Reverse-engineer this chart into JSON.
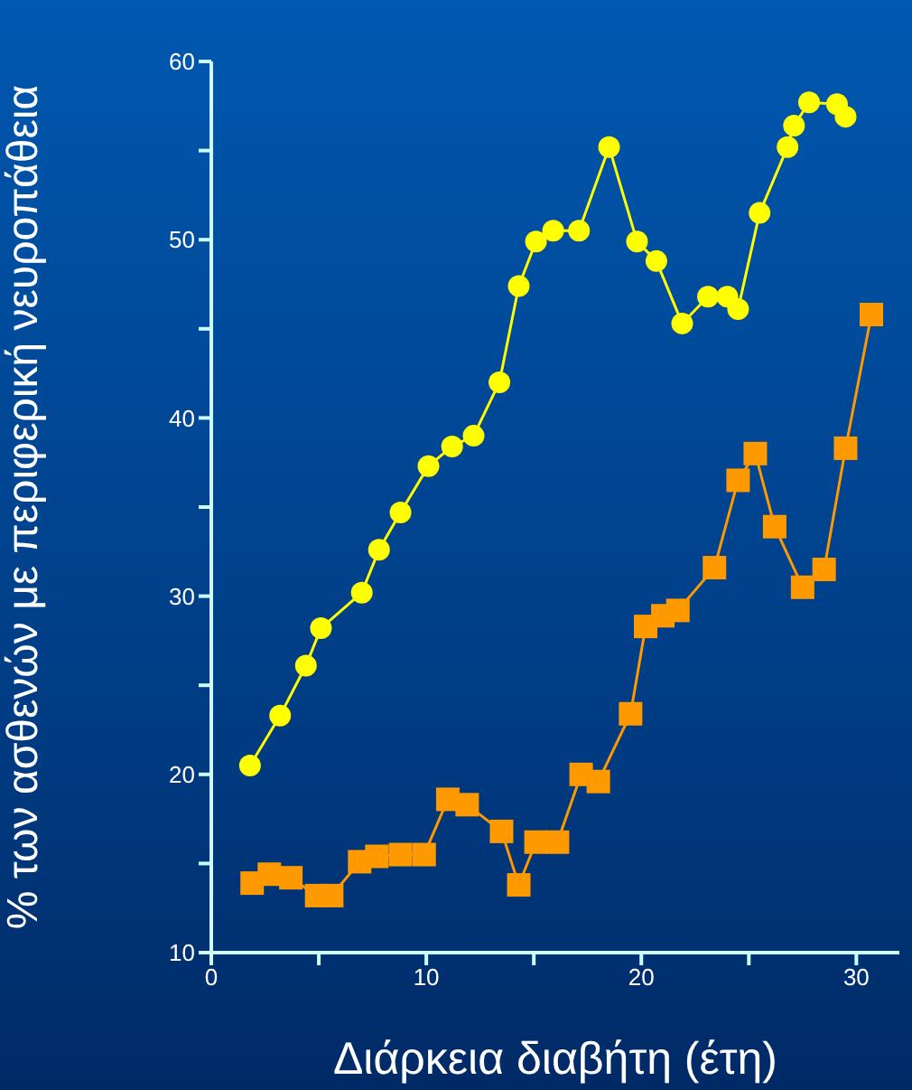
{
  "chart_data": {
    "type": "line",
    "xlabel": "Διάρκεια διαβήτη (έτη)",
    "ylabel": "% των ασθενών με περιφερική νευροπάθεια",
    "xlim": [
      0,
      32
    ],
    "xticks": [
      0,
      {
        "value": 5,
        "label": null
      },
      10,
      {
        "value": 15,
        "label": null
      },
      20,
      {
        "value": 25,
        "label": null
      },
      30
    ],
    "ylim": [
      10,
      60
    ],
    "yticks": [
      10,
      {
        "value": 15,
        "label": null
      },
      20,
      {
        "value": 25,
        "label": null
      },
      30,
      {
        "value": 35,
        "label": null
      },
      40,
      {
        "value": 45,
        "label": null
      },
      50,
      {
        "value": 55,
        "label": null
      },
      60
    ],
    "series": [
      {
        "color": "#ffff00",
        "marker": "circle",
        "x": [
          1.8,
          3.2,
          4.4,
          5.1,
          7.0,
          7.8,
          8.8,
          10.1,
          11.2,
          12.2,
          13.4,
          14.3,
          15.1,
          15.9,
          17.1,
          18.5,
          19.8,
          20.7,
          21.9,
          23.1,
          24.0,
          24.5,
          25.5,
          26.8,
          27.1,
          27.8,
          29.1,
          29.5
        ],
        "values": [
          20.5,
          23.3,
          26.1,
          28.2,
          30.2,
          32.6,
          34.7,
          37.3,
          38.4,
          39.0,
          42.0,
          47.4,
          49.9,
          50.5,
          50.5,
          55.2,
          49.9,
          48.8,
          45.3,
          46.8,
          46.8,
          46.1,
          51.5,
          55.2,
          56.4,
          57.7,
          57.6,
          56.9
        ]
      },
      {
        "color": "#ff9900",
        "marker": "square",
        "x": [
          1.9,
          2.7,
          3.7,
          4.9,
          5.6,
          6.9,
          7.7,
          8.8,
          9.9,
          11.0,
          11.9,
          13.5,
          14.3,
          15.1,
          16.1,
          17.2,
          18.0,
          19.5,
          20.2,
          21.0,
          21.7,
          23.4,
          24.5,
          25.3,
          26.2,
          27.5,
          28.5,
          29.5,
          30.7
        ],
        "values": [
          13.9,
          14.4,
          14.2,
          13.2,
          13.2,
          15.1,
          15.4,
          15.5,
          15.5,
          18.6,
          18.3,
          16.8,
          13.8,
          16.2,
          16.2,
          20.0,
          19.6,
          23.4,
          28.3,
          28.9,
          29.2,
          31.6,
          36.5,
          38.0,
          33.9,
          30.5,
          31.5,
          38.3,
          45.8
        ]
      }
    ]
  }
}
